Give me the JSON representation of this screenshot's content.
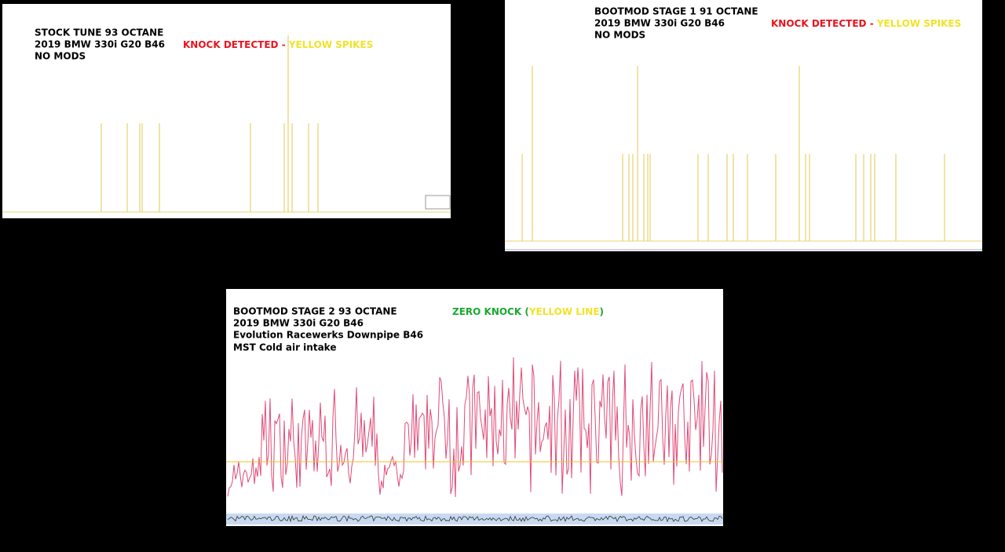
{
  "panels": [
    {
      "lines": [
        "STOCK TUNE 93 OCTANE",
        "2019 BMW 330i G20 B46",
        "NO MODS"
      ],
      "annotation": [
        "KNOCK DETECTED - ",
        "YELLOW SPIKES"
      ]
    },
    {
      "lines": [
        "BOOTMOD STAGE 1 91 OCTANE",
        "2019 BMW 330i G20 B46",
        "NO MODS"
      ],
      "annotation": [
        "KNOCK DETECTED - ",
        "YELLOW SPIKES"
      ]
    },
    {
      "lines": [
        "BOOTMOD STAGE 2 93 OCTANE",
        "2019 BMW 330i G20 B46",
        "Evolution Racewerks Downpipe B46",
        "MST Cold air intake"
      ],
      "annotation": [
        "ZERO KNOCK (",
        "YELLOW LINE",
        ")"
      ]
    }
  ]
}
